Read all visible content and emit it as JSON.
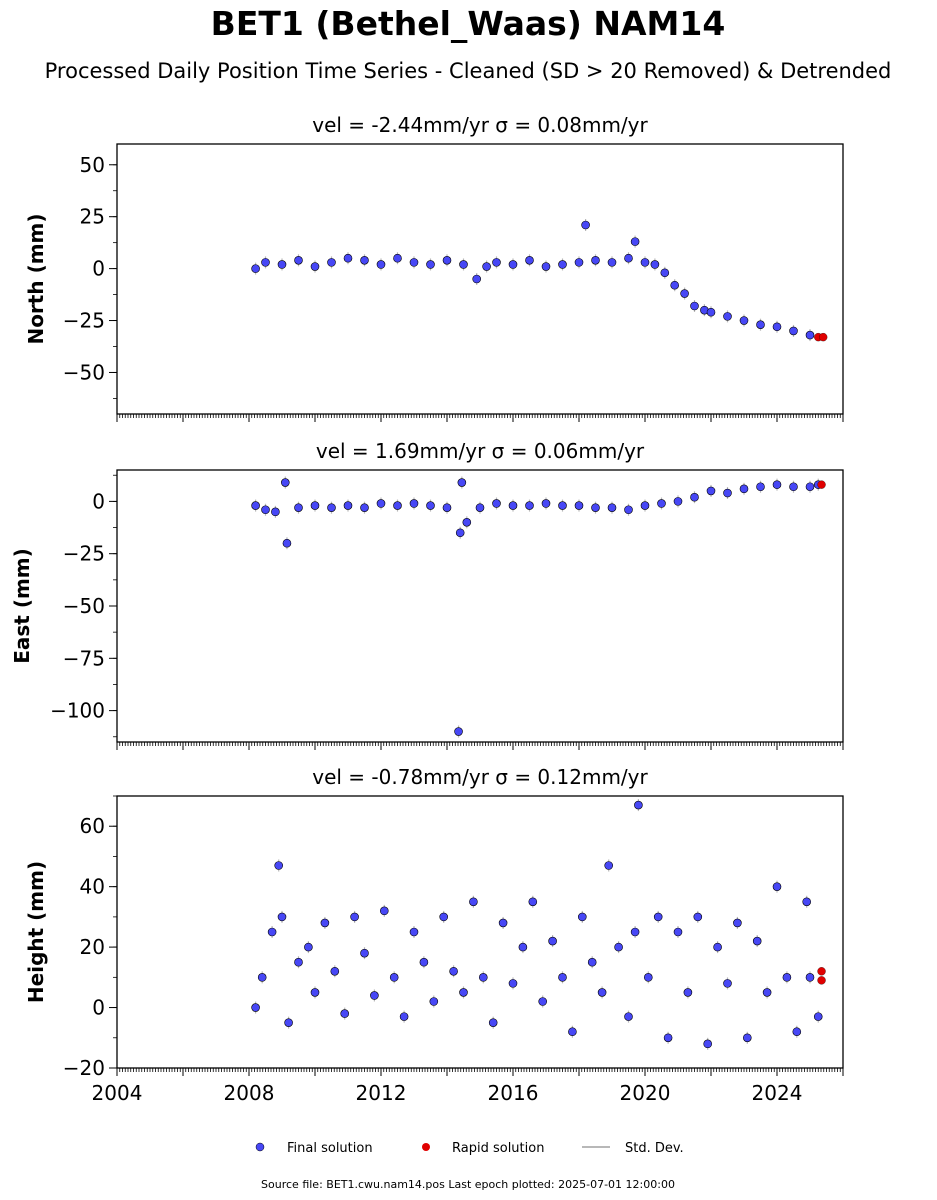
{
  "title": "BET1 (Bethel_Waas) NAM14",
  "subtitle": "Processed Daily Position Time Series - Cleaned (SD > 20 Removed) & Detrended",
  "footer": "Source file: BET1.cwu.nam14.pos  Last epoch plotted: 2025-07-01 12:00:00",
  "colors": {
    "final": "#4747f5",
    "rapid": "#e00000",
    "stddev": "#b8b8b8"
  },
  "chart_data": [
    {
      "type": "scatter",
      "title": "vel = -2.44mm/yr   σ = 0.08mm/yr",
      "ylabel": "North (mm)",
      "xlim": [
        2004,
        2026
      ],
      "ylim": [
        -70,
        60
      ],
      "yticks": [
        50,
        25,
        0,
        -25,
        -50
      ],
      "ytick_labels": [
        "50",
        "25",
        "0",
        "−25",
        "−50"
      ],
      "grid": false,
      "series": [
        {
          "name": "Final solution",
          "x": [
            2008.2,
            2008.5,
            2009.0,
            2009.5,
            2010.0,
            2010.5,
            2011.0,
            2011.5,
            2012.0,
            2012.5,
            2013.0,
            2013.5,
            2014.0,
            2014.5,
            2014.9,
            2015.2,
            2015.5,
            2016.0,
            2016.5,
            2017.0,
            2017.5,
            2018.0,
            2018.2,
            2018.5,
            2019.0,
            2019.5,
            2019.7,
            2020.0,
            2020.3,
            2020.6,
            2020.9,
            2021.2,
            2021.5,
            2021.8,
            2022.0,
            2022.5,
            2023.0,
            2023.5,
            2024.0,
            2024.5,
            2025.0
          ],
          "y": [
            0,
            3,
            2,
            4,
            1,
            3,
            5,
            4,
            2,
            5,
            3,
            2,
            4,
            2,
            -5,
            1,
            3,
            2,
            4,
            1,
            2,
            3,
            21,
            4,
            3,
            5,
            13,
            3,
            2,
            -2,
            -8,
            -12,
            -18,
            -20,
            -21,
            -23,
            -25,
            -27,
            -28,
            -30,
            -32
          ]
        },
        {
          "name": "Rapid solution",
          "x": [
            2025.25,
            2025.4
          ],
          "y": [
            -33,
            -33
          ]
        }
      ]
    },
    {
      "type": "scatter",
      "title": "vel = 1.69mm/yr   σ = 0.06mm/yr",
      "ylabel": "East (mm)",
      "xlim": [
        2004,
        2026
      ],
      "ylim": [
        -115,
        15
      ],
      "yticks": [
        0,
        -25,
        -50,
        -75,
        -100
      ],
      "ytick_labels": [
        "0",
        "−25",
        "−50",
        "−75",
        "−100"
      ],
      "grid": false,
      "series": [
        {
          "name": "Final solution",
          "x": [
            2008.2,
            2008.5,
            2008.8,
            2009.1,
            2009.15,
            2009.5,
            2010.0,
            2010.5,
            2011.0,
            2011.5,
            2012.0,
            2012.5,
            2013.0,
            2013.5,
            2014.0,
            2014.35,
            2014.4,
            2014.45,
            2014.6,
            2015.0,
            2015.5,
            2016.0,
            2016.5,
            2017.0,
            2017.5,
            2018.0,
            2018.5,
            2019.0,
            2019.5,
            2020.0,
            2020.5,
            2021.0,
            2021.5,
            2022.0,
            2022.5,
            2023.0,
            2023.5,
            2024.0,
            2024.5,
            2025.0,
            2025.25
          ],
          "y": [
            -2,
            -4,
            -5,
            9,
            -20,
            -3,
            -2,
            -3,
            -2,
            -3,
            -1,
            -2,
            -1,
            -2,
            -3,
            -110,
            -15,
            9,
            -10,
            -3,
            -1,
            -2,
            -2,
            -1,
            -2,
            -2,
            -3,
            -3,
            -4,
            -2,
            -1,
            0,
            2,
            5,
            4,
            6,
            7,
            8,
            7,
            7,
            8
          ]
        },
        {
          "name": "Rapid solution",
          "x": [
            2025.35
          ],
          "y": [
            8
          ]
        }
      ]
    },
    {
      "type": "scatter",
      "title": "vel = -0.78mm/yr   σ = 0.12mm/yr",
      "ylabel": "Height (mm)",
      "xlim": [
        2004,
        2026
      ],
      "ylim": [
        -20,
        70
      ],
      "yticks": [
        60,
        40,
        20,
        0,
        -20
      ],
      "ytick_labels": [
        "60",
        "40",
        "20",
        "0",
        "−20"
      ],
      "xticks": [
        2004,
        2008,
        2012,
        2016,
        2020,
        2024
      ],
      "xtick_labels": [
        "2004",
        "2008",
        "2012",
        "2016",
        "2020",
        "2024"
      ],
      "grid": false,
      "series": [
        {
          "name": "Final solution",
          "x": [
            2008.2,
            2008.4,
            2008.7,
            2008.9,
            2009.0,
            2009.2,
            2009.5,
            2009.8,
            2010.0,
            2010.3,
            2010.6,
            2010.9,
            2011.2,
            2011.5,
            2011.8,
            2012.1,
            2012.4,
            2012.7,
            2013.0,
            2013.3,
            2013.6,
            2013.9,
            2014.2,
            2014.5,
            2014.8,
            2015.1,
            2015.4,
            2015.7,
            2016.0,
            2016.3,
            2016.6,
            2016.9,
            2017.2,
            2017.5,
            2017.8,
            2018.1,
            2018.4,
            2018.7,
            2018.9,
            2019.2,
            2019.5,
            2019.7,
            2019.8,
            2020.1,
            2020.4,
            2020.7,
            2021.0,
            2021.3,
            2021.6,
            2021.9,
            2022.2,
            2022.5,
            2022.8,
            2023.1,
            2023.4,
            2023.7,
            2024.0,
            2024.3,
            2024.6,
            2024.9,
            2025.0,
            2025.25
          ],
          "y": [
            0,
            10,
            25,
            47,
            30,
            -5,
            15,
            20,
            5,
            28,
            12,
            -2,
            30,
            18,
            4,
            32,
            10,
            -3,
            25,
            15,
            2,
            30,
            12,
            5,
            35,
            10,
            -5,
            28,
            8,
            20,
            35,
            2,
            22,
            10,
            -8,
            30,
            15,
            5,
            47,
            20,
            -3,
            25,
            67,
            10,
            30,
            -10,
            25,
            5,
            30,
            -12,
            20,
            8,
            28,
            -10,
            22,
            5,
            40,
            10,
            -8,
            35,
            10,
            -3
          ]
        },
        {
          "name": "Rapid solution",
          "x": [
            2025.35,
            2025.35
          ],
          "y": [
            12,
            9
          ]
        }
      ]
    }
  ],
  "legend": {
    "placement": "bottom-center",
    "entries": [
      "Final solution",
      "Rapid solution",
      "Std. Dev."
    ]
  }
}
